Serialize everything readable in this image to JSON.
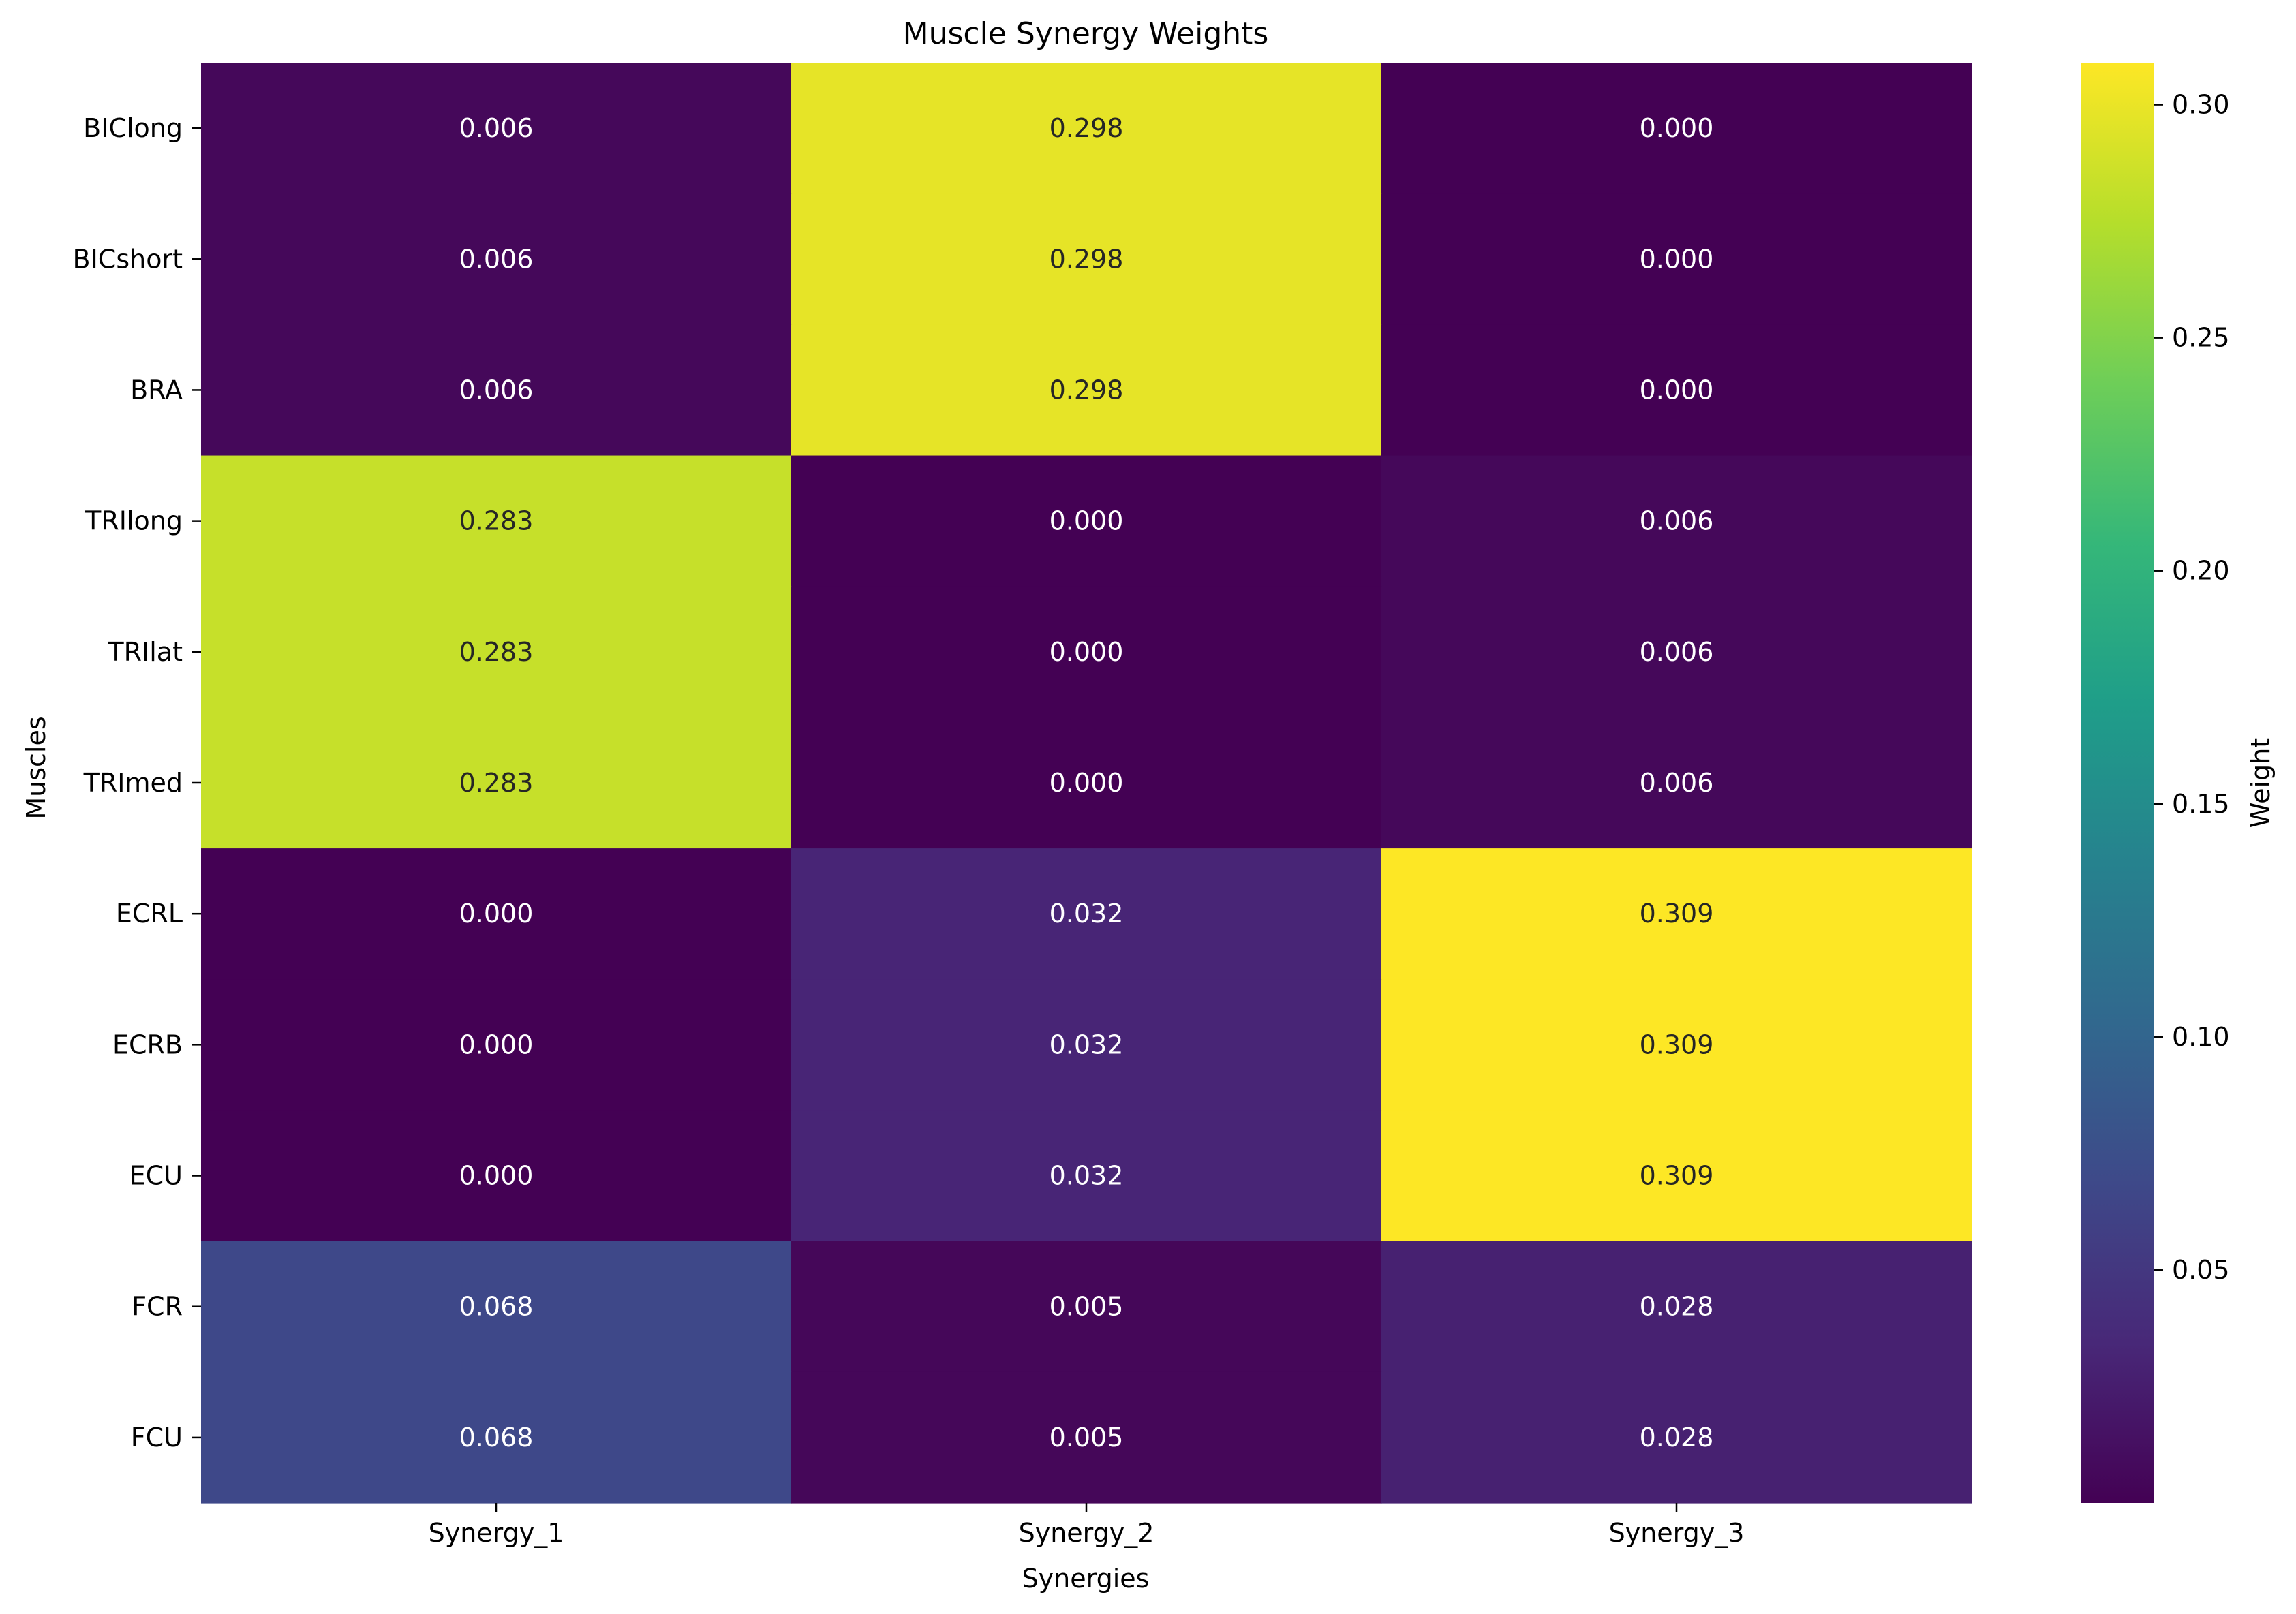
{
  "chart_data": {
    "type": "heatmap",
    "title": "Muscle Synergy Weights",
    "xlabel": "Synergies",
    "ylabel": "Muscles",
    "x_categories": [
      "Synergy_1",
      "Synergy_2",
      "Synergy_3"
    ],
    "y_categories": [
      "BIClong",
      "BICshort",
      "BRA",
      "TRIlong",
      "TRIlat",
      "TRImed",
      "ECRL",
      "ECRB",
      "ECU",
      "FCR",
      "FCU"
    ],
    "values": [
      [
        0.006,
        0.298,
        0.0
      ],
      [
        0.006,
        0.298,
        0.0
      ],
      [
        0.006,
        0.298,
        0.0
      ],
      [
        0.283,
        0.0,
        0.006
      ],
      [
        0.283,
        0.0,
        0.006
      ],
      [
        0.283,
        0.0,
        0.006
      ],
      [
        0.0,
        0.032,
        0.309
      ],
      [
        0.0,
        0.032,
        0.309
      ],
      [
        0.0,
        0.032,
        0.309
      ],
      [
        0.068,
        0.005,
        0.028
      ],
      [
        0.068,
        0.005,
        0.028
      ]
    ],
    "cell_labels": [
      [
        "0.006",
        "0.298",
        "0.000"
      ],
      [
        "0.006",
        "0.298",
        "0.000"
      ],
      [
        "0.006",
        "0.298",
        "0.000"
      ],
      [
        "0.283",
        "0.000",
        "0.006"
      ],
      [
        "0.283",
        "0.000",
        "0.006"
      ],
      [
        "0.283",
        "0.000",
        "0.006"
      ],
      [
        "0.000",
        "0.032",
        "0.309"
      ],
      [
        "0.000",
        "0.032",
        "0.309"
      ],
      [
        "0.000",
        "0.032",
        "0.309"
      ],
      [
        "0.068",
        "0.005",
        "0.028"
      ],
      [
        "0.068",
        "0.005",
        "0.028"
      ]
    ],
    "colormap": "viridis",
    "colorbar": {
      "label": "Weight",
      "range": [
        0.0,
        0.309
      ],
      "ticks": [
        0.05,
        0.1,
        0.15,
        0.2,
        0.25,
        0.3
      ],
      "tick_labels": [
        "0.05",
        "0.10",
        "0.15",
        "0.20",
        "0.25",
        "0.30"
      ]
    },
    "grid": false
  }
}
